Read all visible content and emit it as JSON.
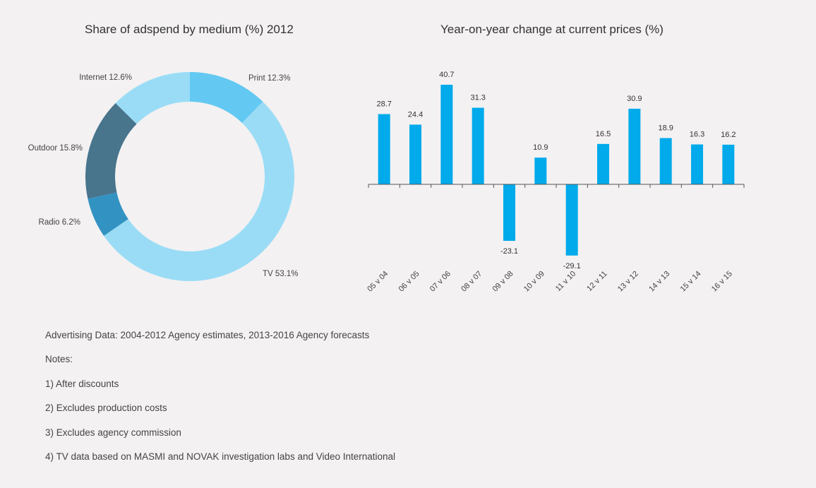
{
  "chart_data": [
    {
      "type": "pie",
      "donut": true,
      "title": "Share of adspend by medium (%) 2012",
      "slices": [
        {
          "name": "Print",
          "value": 12.3,
          "label": "Print 12.3%",
          "color": "#63c9f2"
        },
        {
          "name": "TV",
          "value": 53.1,
          "label": "TV 53.1%",
          "color": "#9adcf6"
        },
        {
          "name": "Radio",
          "value": 6.2,
          "label": "Radio 6.2%",
          "color": "#3293c2"
        },
        {
          "name": "Outdoor",
          "value": 15.8,
          "label": "Outdoor 15.8%",
          "color": "#48748c"
        },
        {
          "name": "Internet",
          "value": 12.6,
          "label": "Internet 12.6%",
          "color": "#9adcf6"
        }
      ]
    },
    {
      "type": "bar",
      "title": "Year-on-year change at current prices (%)",
      "categories": [
        "05 v 04",
        "06 v 05",
        "07 v 06",
        "08 v 07",
        "09 v 08",
        "10 v 09",
        "11 v 10",
        "12 v 11",
        "13 v 12",
        "14 v 13",
        "15 v 14",
        "16 v 15"
      ],
      "values": [
        28.7,
        24.4,
        40.7,
        31.3,
        -23.1,
        10.9,
        -29.1,
        16.5,
        30.9,
        18.9,
        16.3,
        16.2
      ],
      "value_labels": [
        "28.7",
        "24.4",
        "40.7",
        "31.3",
        "-23.1",
        "10.9",
        "-29.1",
        "16.5",
        "30.9",
        "18.9",
        "16.3",
        "16.2"
      ],
      "bar_color": "#00aaeb",
      "xlabel": "",
      "ylabel": "",
      "ylim": [
        -35,
        45
      ],
      "grid": false,
      "legend": "none"
    }
  ],
  "notes": {
    "source": "Advertising Data: 2004-2012 Agency estimates, 2013-2016 Agency forecasts",
    "heading": "Notes:",
    "items": [
      "1) After discounts",
      "2) Excludes production costs",
      "3) Excludes agency commission",
      "4) TV data based on MASMI and NOVAK investigation labs and Video International"
    ]
  }
}
